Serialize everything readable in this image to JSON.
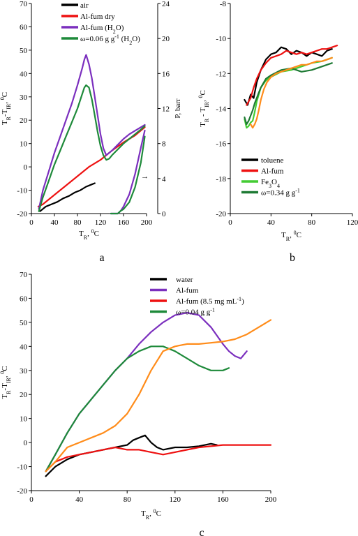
{
  "chart_data": [
    {
      "panel": "a",
      "type": "line",
      "xlim": [
        0,
        200
      ],
      "ylim": [
        -20,
        70
      ],
      "y2lim": [
        0,
        24
      ],
      "xticks": [
        "0",
        "40",
        "80",
        "120",
        "160",
        "200"
      ],
      "yticks": [
        "-20",
        "-10",
        "0",
        "10",
        "20",
        "30",
        "40",
        "50",
        "60",
        "70"
      ],
      "y2ticks": [
        "0",
        "4",
        "8",
        "12",
        "16",
        "20",
        "24"
      ],
      "xlabel": {
        "main": "T",
        "sub": "R",
        "rest": ", ",
        "sup": "0",
        "tail": "C"
      },
      "ylabel": {
        "main": "T",
        "sub": "R",
        "rest": "-T",
        "sub2": "IR",
        "rest2": ", ",
        "sup": "0",
        "tail": "C"
      },
      "y2label": "P, barr",
      "annotation": "→",
      "legend": [
        {
          "parts": [
            "air"
          ]
        },
        {
          "parts": [
            "Al-fum dry"
          ]
        },
        {
          "parts": [
            "Al-fum (H",
            "2",
            "O)"
          ],
          "subs": [
            1
          ]
        },
        {
          "parts": [
            "ω=0.06 g g",
            "-1",
            " (H",
            "2",
            "O)"
          ],
          "subs": [
            3
          ],
          "sups": [
            1
          ]
        }
      ],
      "series": [
        {
          "color": "#000000",
          "axis": "y",
          "x": [
            15,
            25,
            35,
            45,
            55,
            65,
            75,
            85,
            95,
            105,
            110
          ],
          "y": [
            -19,
            -17,
            -16,
            -15,
            -13.5,
            -12.5,
            -11,
            -10,
            -8.5,
            -7.5,
            -7
          ]
        },
        {
          "color": "#ee1111",
          "axis": "y",
          "x": [
            12,
            20,
            30,
            45,
            60,
            80,
            100,
            120,
            140,
            160,
            180,
            197
          ],
          "y": [
            -17,
            -16,
            -14,
            -11,
            -8,
            -4,
            0,
            3,
            7,
            10.5,
            13.5,
            17
          ]
        },
        {
          "color": "#7b2fbe",
          "axis": "y",
          "x": [
            13,
            20,
            30,
            40,
            50,
            60,
            70,
            80,
            88,
            92,
            95,
            100,
            105,
            110,
            115,
            120,
            125,
            130,
            135,
            140,
            150,
            160,
            170,
            180,
            190,
            197
          ],
          "y": [
            -18,
            -10,
            -2,
            6,
            13,
            20,
            27,
            35,
            42,
            46,
            48,
            44,
            38,
            30,
            22,
            14,
            8,
            5,
            6,
            7,
            9.5,
            12,
            14,
            15.5,
            17,
            18
          ]
        },
        {
          "color": "#1e8a3a",
          "axis": "y",
          "x": [
            13,
            20,
            30,
            40,
            50,
            60,
            70,
            80,
            88,
            92,
            95,
            100,
            105,
            110,
            115,
            120,
            125,
            130,
            135,
            140,
            150,
            160,
            170,
            180,
            190,
            197
          ],
          "y": [
            -19,
            -13,
            -6,
            1,
            7,
            13,
            19,
            25,
            31,
            34,
            35,
            34,
            29,
            22,
            15,
            9,
            5,
            3,
            3.5,
            5,
            7.5,
            10,
            12,
            14,
            16,
            17.5
          ]
        },
        {
          "color": "#7b2fbe",
          "axis": "y2",
          "x": [
            138,
            145,
            150,
            155,
            160,
            170,
            180,
            190,
            197
          ],
          "y": [
            0,
            0,
            0,
            0.3,
            0.8,
            2.2,
            4.5,
            7.5,
            9.5
          ]
        },
        {
          "color": "#1e8a3a",
          "axis": "y2",
          "x": [
            138,
            145,
            150,
            155,
            160,
            170,
            180,
            190,
            197
          ],
          "y": [
            0,
            0,
            0,
            0.3,
            0.5,
            1.3,
            3.0,
            5.8,
            8.8
          ]
        }
      ]
    },
    {
      "panel": "b",
      "type": "line",
      "xlim": [
        0,
        120
      ],
      "ylim": [
        -20,
        -8
      ],
      "xticks": [
        "0",
        "40",
        "80",
        "120"
      ],
      "yticks": [
        "-20",
        "-18",
        "-16",
        "-14",
        "-12",
        "-10",
        "-8"
      ],
      "xlabel": {
        "main": "T",
        "sub": "R",
        "rest": ", ",
        "sup": "0",
        "tail": "C"
      },
      "ylabel": {
        "main": "T",
        "sub": "R",
        "rest": " - T",
        "sub2": "IR",
        "rest2": ", ",
        "sup": "0",
        "tail": "C"
      },
      "legend": [
        {
          "parts": [
            "toluene"
          ]
        },
        {
          "parts": [
            "Al-fum"
          ]
        },
        {
          "parts": [
            "Fe",
            "3",
            "O",
            "4"
          ],
          "subs": [
            1,
            3
          ]
        },
        {
          "parts": [
            "ω=0.34  g g",
            "-1"
          ],
          "sups": [
            1
          ]
        }
      ],
      "series": [
        {
          "color": "#000000",
          "x": [
            14,
            17,
            20,
            23,
            26,
            30,
            35,
            40,
            45,
            50,
            55,
            60,
            65,
            70,
            75,
            80,
            85,
            90,
            95,
            100
          ],
          "y": [
            -13.5,
            -13.8,
            -13.2,
            -13.4,
            -12.5,
            -11.8,
            -11.2,
            -10.9,
            -10.8,
            -10.5,
            -10.6,
            -10.9,
            -10.7,
            -10.8,
            -11.0,
            -10.8,
            -10.9,
            -11.0,
            -10.7,
            -10.6
          ]
        },
        {
          "color": "#ee1111",
          "x": [
            16,
            20,
            23,
            26,
            30,
            35,
            40,
            45,
            50,
            55,
            60,
            65,
            70,
            75,
            80,
            85,
            90,
            95,
            100,
            105
          ],
          "y": [
            -13.8,
            -13.4,
            -12.8,
            -12.3,
            -11.8,
            -11.4,
            -11.1,
            -11.0,
            -10.9,
            -10.7,
            -10.8,
            -10.9,
            -10.8,
            -10.9,
            -10.8,
            -10.7,
            -10.6,
            -10.6,
            -10.5,
            -10.4
          ]
        },
        {
          "color": "#44cc33",
          "x": [
            14,
            16,
            18,
            20,
            22,
            24,
            26,
            28,
            30,
            35,
            40,
            50,
            60,
            70,
            80,
            90,
            100
          ],
          "y": [
            -14.6,
            -15.1,
            -15.0,
            -14.8,
            -14.7,
            -14.2,
            -13.6,
            -13.2,
            -12.8,
            -12.4,
            -12.2,
            -11.9,
            -11.8,
            -11.6,
            -11.4,
            -11.3,
            -11.1
          ]
        },
        {
          "color": "#1e7a34",
          "x": [
            14,
            16,
            18,
            20,
            22,
            24,
            26,
            28,
            30,
            35,
            40,
            50,
            60,
            70,
            80,
            90,
            100
          ],
          "y": [
            -14.5,
            -14.9,
            -14.7,
            -14.4,
            -14.1,
            -13.7,
            -13.4,
            -13.1,
            -12.8,
            -12.3,
            -12.1,
            -11.8,
            -11.7,
            -11.9,
            -11.8,
            -11.6,
            -11.4
          ]
        },
        {
          "color": "#ff8c1a",
          "x": [
            20,
            22,
            24,
            26,
            28,
            30,
            33,
            36,
            40,
            45,
            50,
            55,
            60,
            65,
            70,
            75,
            80,
            85,
            90,
            95,
            100
          ],
          "y": [
            -14.9,
            -15.1,
            -14.9,
            -14.6,
            -14.1,
            -13.5,
            -12.9,
            -12.5,
            -12.2,
            -12.0,
            -11.9,
            -11.8,
            -11.7,
            -11.6,
            -11.5,
            -11.5,
            -11.4,
            -11.3,
            -11.3,
            -11.2,
            -11.1
          ]
        }
      ]
    },
    {
      "panel": "c",
      "type": "line",
      "xlim": [
        0,
        200
      ],
      "ylim": [
        -20,
        70
      ],
      "xticks": [
        "0",
        "40",
        "80",
        "120",
        "160",
        "200"
      ],
      "yticks": [
        "-20",
        "-10",
        "0",
        "10",
        "20",
        "30",
        "40",
        "50",
        "60",
        "70"
      ],
      "xlabel": {
        "main": "T",
        "sub": "R",
        "rest": ", ",
        "sup": "0",
        "tail": "C"
      },
      "ylabel": {
        "main": "T",
        "sub": "R",
        "rest": "-T",
        "sub2": "IR",
        "rest2": ", ",
        "sup": "0",
        "tail": "C"
      },
      "legend": [
        {
          "parts": [
            "water"
          ]
        },
        {
          "parts": [
            "Al-fum"
          ]
        },
        {
          "parts": [
            "Al-fum (8.5 mg mL",
            "-1",
            ")"
          ],
          "sups": [
            1
          ]
        },
        {
          "parts": [
            "ω=0.04  g g",
            "-1"
          ],
          "sups": [
            1
          ]
        }
      ],
      "series": [
        {
          "color": "#000000",
          "x": [
            12,
            20,
            30,
            40,
            50,
            60,
            70,
            80,
            85,
            90,
            95,
            100,
            105,
            110,
            120,
            130,
            140,
            150,
            155
          ],
          "y": [
            -14,
            -10,
            -7,
            -5,
            -4,
            -3,
            -2,
            -1,
            1,
            2,
            3,
            0,
            -2,
            -3,
            -2,
            -2,
            -1.5,
            -0.5,
            -1
          ]
        },
        {
          "color": "#7b2fbe",
          "x": [
            12,
            20,
            30,
            40,
            50,
            60,
            70,
            80,
            90,
            100,
            110,
            120,
            130,
            140,
            150,
            160,
            165,
            170,
            175,
            180
          ],
          "y": [
            -12,
            -5,
            4,
            12,
            18,
            24,
            30,
            35,
            41,
            46,
            50,
            53,
            54,
            53,
            48,
            41,
            38,
            36,
            35,
            38
          ]
        },
        {
          "color": "#ee1111",
          "x": [
            12,
            20,
            30,
            40,
            50,
            60,
            70,
            80,
            90,
            100,
            110,
            120,
            140,
            160,
            180,
            200
          ],
          "y": [
            -12,
            -8,
            -6,
            -5,
            -4,
            -3,
            -2,
            -3,
            -3,
            -4,
            -5,
            -4,
            -2,
            -1,
            -1,
            -1
          ]
        },
        {
          "color": "#1e8a3a",
          "x": [
            12,
            20,
            30,
            40,
            50,
            60,
            70,
            80,
            90,
            100,
            110,
            120,
            130,
            140,
            150,
            160,
            165
          ],
          "y": [
            -12,
            -5,
            4,
            12,
            18,
            24,
            30,
            35,
            38,
            40,
            40,
            38,
            35,
            32,
            30,
            30,
            31
          ]
        },
        {
          "color": "#ff8c1a",
          "x": [
            12,
            20,
            30,
            40,
            50,
            60,
            70,
            80,
            90,
            100,
            110,
            120,
            130,
            140,
            150,
            160,
            170,
            180,
            190,
            200
          ],
          "y": [
            -12,
            -8,
            -2,
            0,
            2,
            4,
            7,
            12,
            20,
            30,
            38,
            40,
            41,
            41,
            41.5,
            42,
            43,
            45,
            48,
            51
          ]
        }
      ]
    }
  ],
  "panel_labels": {
    "a": "a",
    "b": "b",
    "c": "c"
  },
  "colors": {
    "black": "#000000",
    "red": "#ee1111",
    "purple": "#7b2fbe",
    "green": "#1e8a3a",
    "light_green": "#44cc33",
    "orange": "#ff8c1a"
  }
}
